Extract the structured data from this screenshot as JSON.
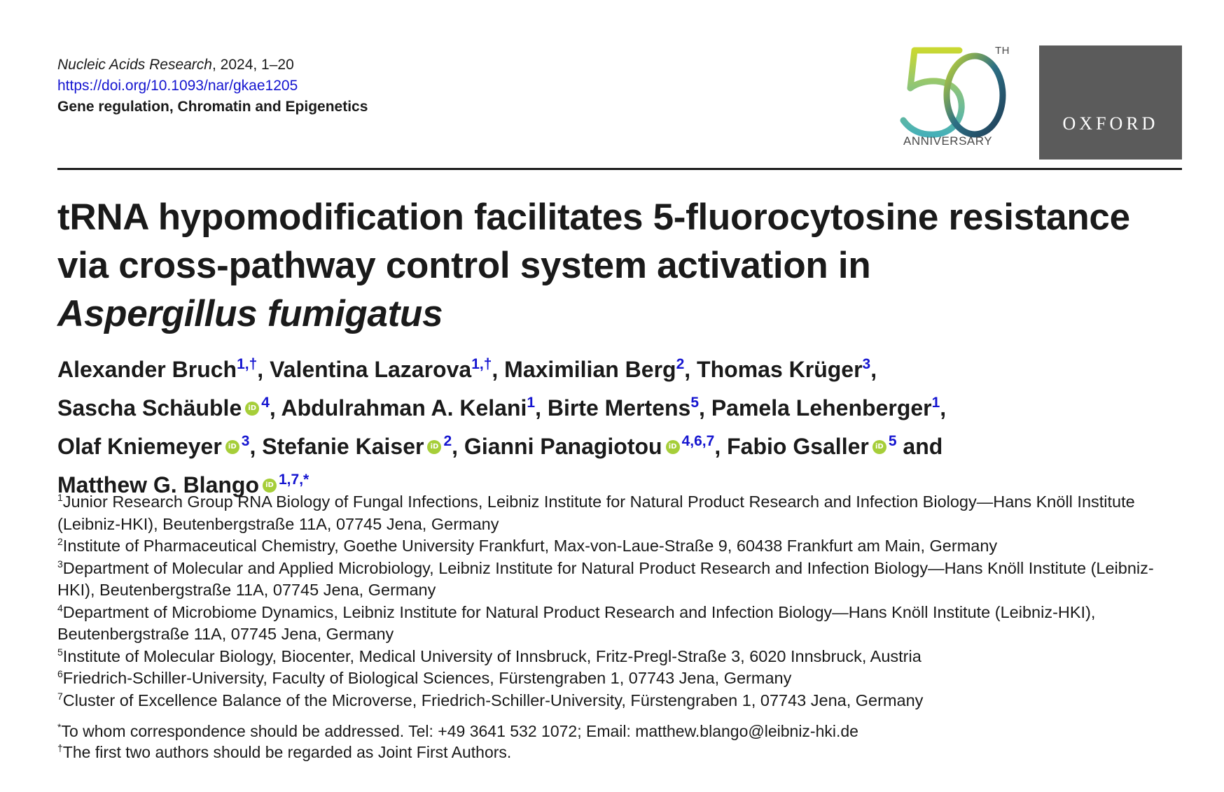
{
  "header": {
    "journal_name": "Nucleic Acids Research",
    "journal_meta": ", 2024, 1–20",
    "doi": "https://doi.org/10.1093/nar/gkae1205",
    "section": "Gene regulation, Chromatin and Epigenetics"
  },
  "logos": {
    "anniversary_th": "TH",
    "anniversary_label": "ANNIVERSARY",
    "publisher": "OXFORD"
  },
  "title": {
    "main": "tRNA hypomodification facilitates 5-fluorocytosine resistance via cross-pathway control system activation in",
    "species": "Aspergillus fumigatus"
  },
  "authors": [
    {
      "name": "Alexander Bruch",
      "orcid": false,
      "aff": "1,†",
      "sep": ", "
    },
    {
      "name": "Valentina Lazarova",
      "orcid": false,
      "aff": "1,†",
      "sep": ", "
    },
    {
      "name": "Maximilian Berg",
      "orcid": false,
      "aff": "2",
      "sep": ", "
    },
    {
      "name": "Thomas Krüger",
      "orcid": false,
      "aff": "3",
      "sep": ", "
    },
    {
      "name": "Sascha Schäuble",
      "orcid": true,
      "aff": "4",
      "sep": ", "
    },
    {
      "name": "Abdulrahman A. Kelani",
      "orcid": false,
      "aff": "1",
      "sep": ", "
    },
    {
      "name": "Birte Mertens",
      "orcid": false,
      "aff": "5",
      "sep": ", "
    },
    {
      "name": "Pamela Lehenberger",
      "orcid": false,
      "aff": "1",
      "sep": ", "
    },
    {
      "name": "Olaf Kniemeyer",
      "orcid": true,
      "aff": "3",
      "sep": ", "
    },
    {
      "name": "Stefanie Kaiser",
      "orcid": true,
      "aff": "2",
      "sep": ", "
    },
    {
      "name": "Gianni Panagiotou",
      "orcid": true,
      "aff": "4,6,7",
      "sep": ", "
    },
    {
      "name": "Fabio Gsaller",
      "orcid": true,
      "aff": "5",
      "sep": " and "
    },
    {
      "name": "Matthew G. Blango",
      "orcid": true,
      "aff": "1,7,*",
      "sep": ""
    }
  ],
  "affiliations": [
    {
      "num": "1",
      "text": "Junior Research Group RNA Biology of Fungal Infections, Leibniz Institute for Natural Product Research and Infection Biology—Hans Knöll Institute (Leibniz-HKI), Beutenbergstraße 11A, 07745 Jena, Germany"
    },
    {
      "num": "2",
      "text": "Institute of Pharmaceutical Chemistry, Goethe University Frankfurt, Max-von-Laue-Straße 9, 60438 Frankfurt am Main, Germany"
    },
    {
      "num": "3",
      "text": "Department of Molecular and Applied Microbiology, Leibniz Institute for Natural Product Research and Infection Biology—Hans Knöll Institute (Leibniz-HKI), Beutenbergstraße 11A, 07745 Jena, Germany"
    },
    {
      "num": "4",
      "text": "Department of Microbiome Dynamics, Leibniz Institute for Natural Product Research and Infection Biology—Hans Knöll Institute (Leibniz-HKI), Beutenbergstraße 11A, 07745 Jena, Germany"
    },
    {
      "num": "5",
      "text": "Institute of Molecular Biology, Biocenter, Medical University of Innsbruck, Fritz-Pregl-Straße 3, 6020 Innsbruck, Austria"
    },
    {
      "num": "6",
      "text": "Friedrich-Schiller-University, Faculty of Biological Sciences, Fürstengraben 1, 07743 Jena, Germany"
    },
    {
      "num": "7",
      "text": "Cluster of Excellence Balance of the Microverse, Friedrich-Schiller-University, Fürstengraben 1, 07743 Jena, Germany"
    }
  ],
  "notes": [
    {
      "mark": "*",
      "text": "To whom correspondence should be addressed. Tel: +49 3641 532 1072; Email: matthew.blango@leibniz-hki.de"
    },
    {
      "mark": "†",
      "text": "The first two authors should be regarded as Joint First Authors."
    }
  ],
  "colors": {
    "link": "#1515d0",
    "orcid": "#a6ce39",
    "oxford_bg": "#5b5b5b"
  }
}
